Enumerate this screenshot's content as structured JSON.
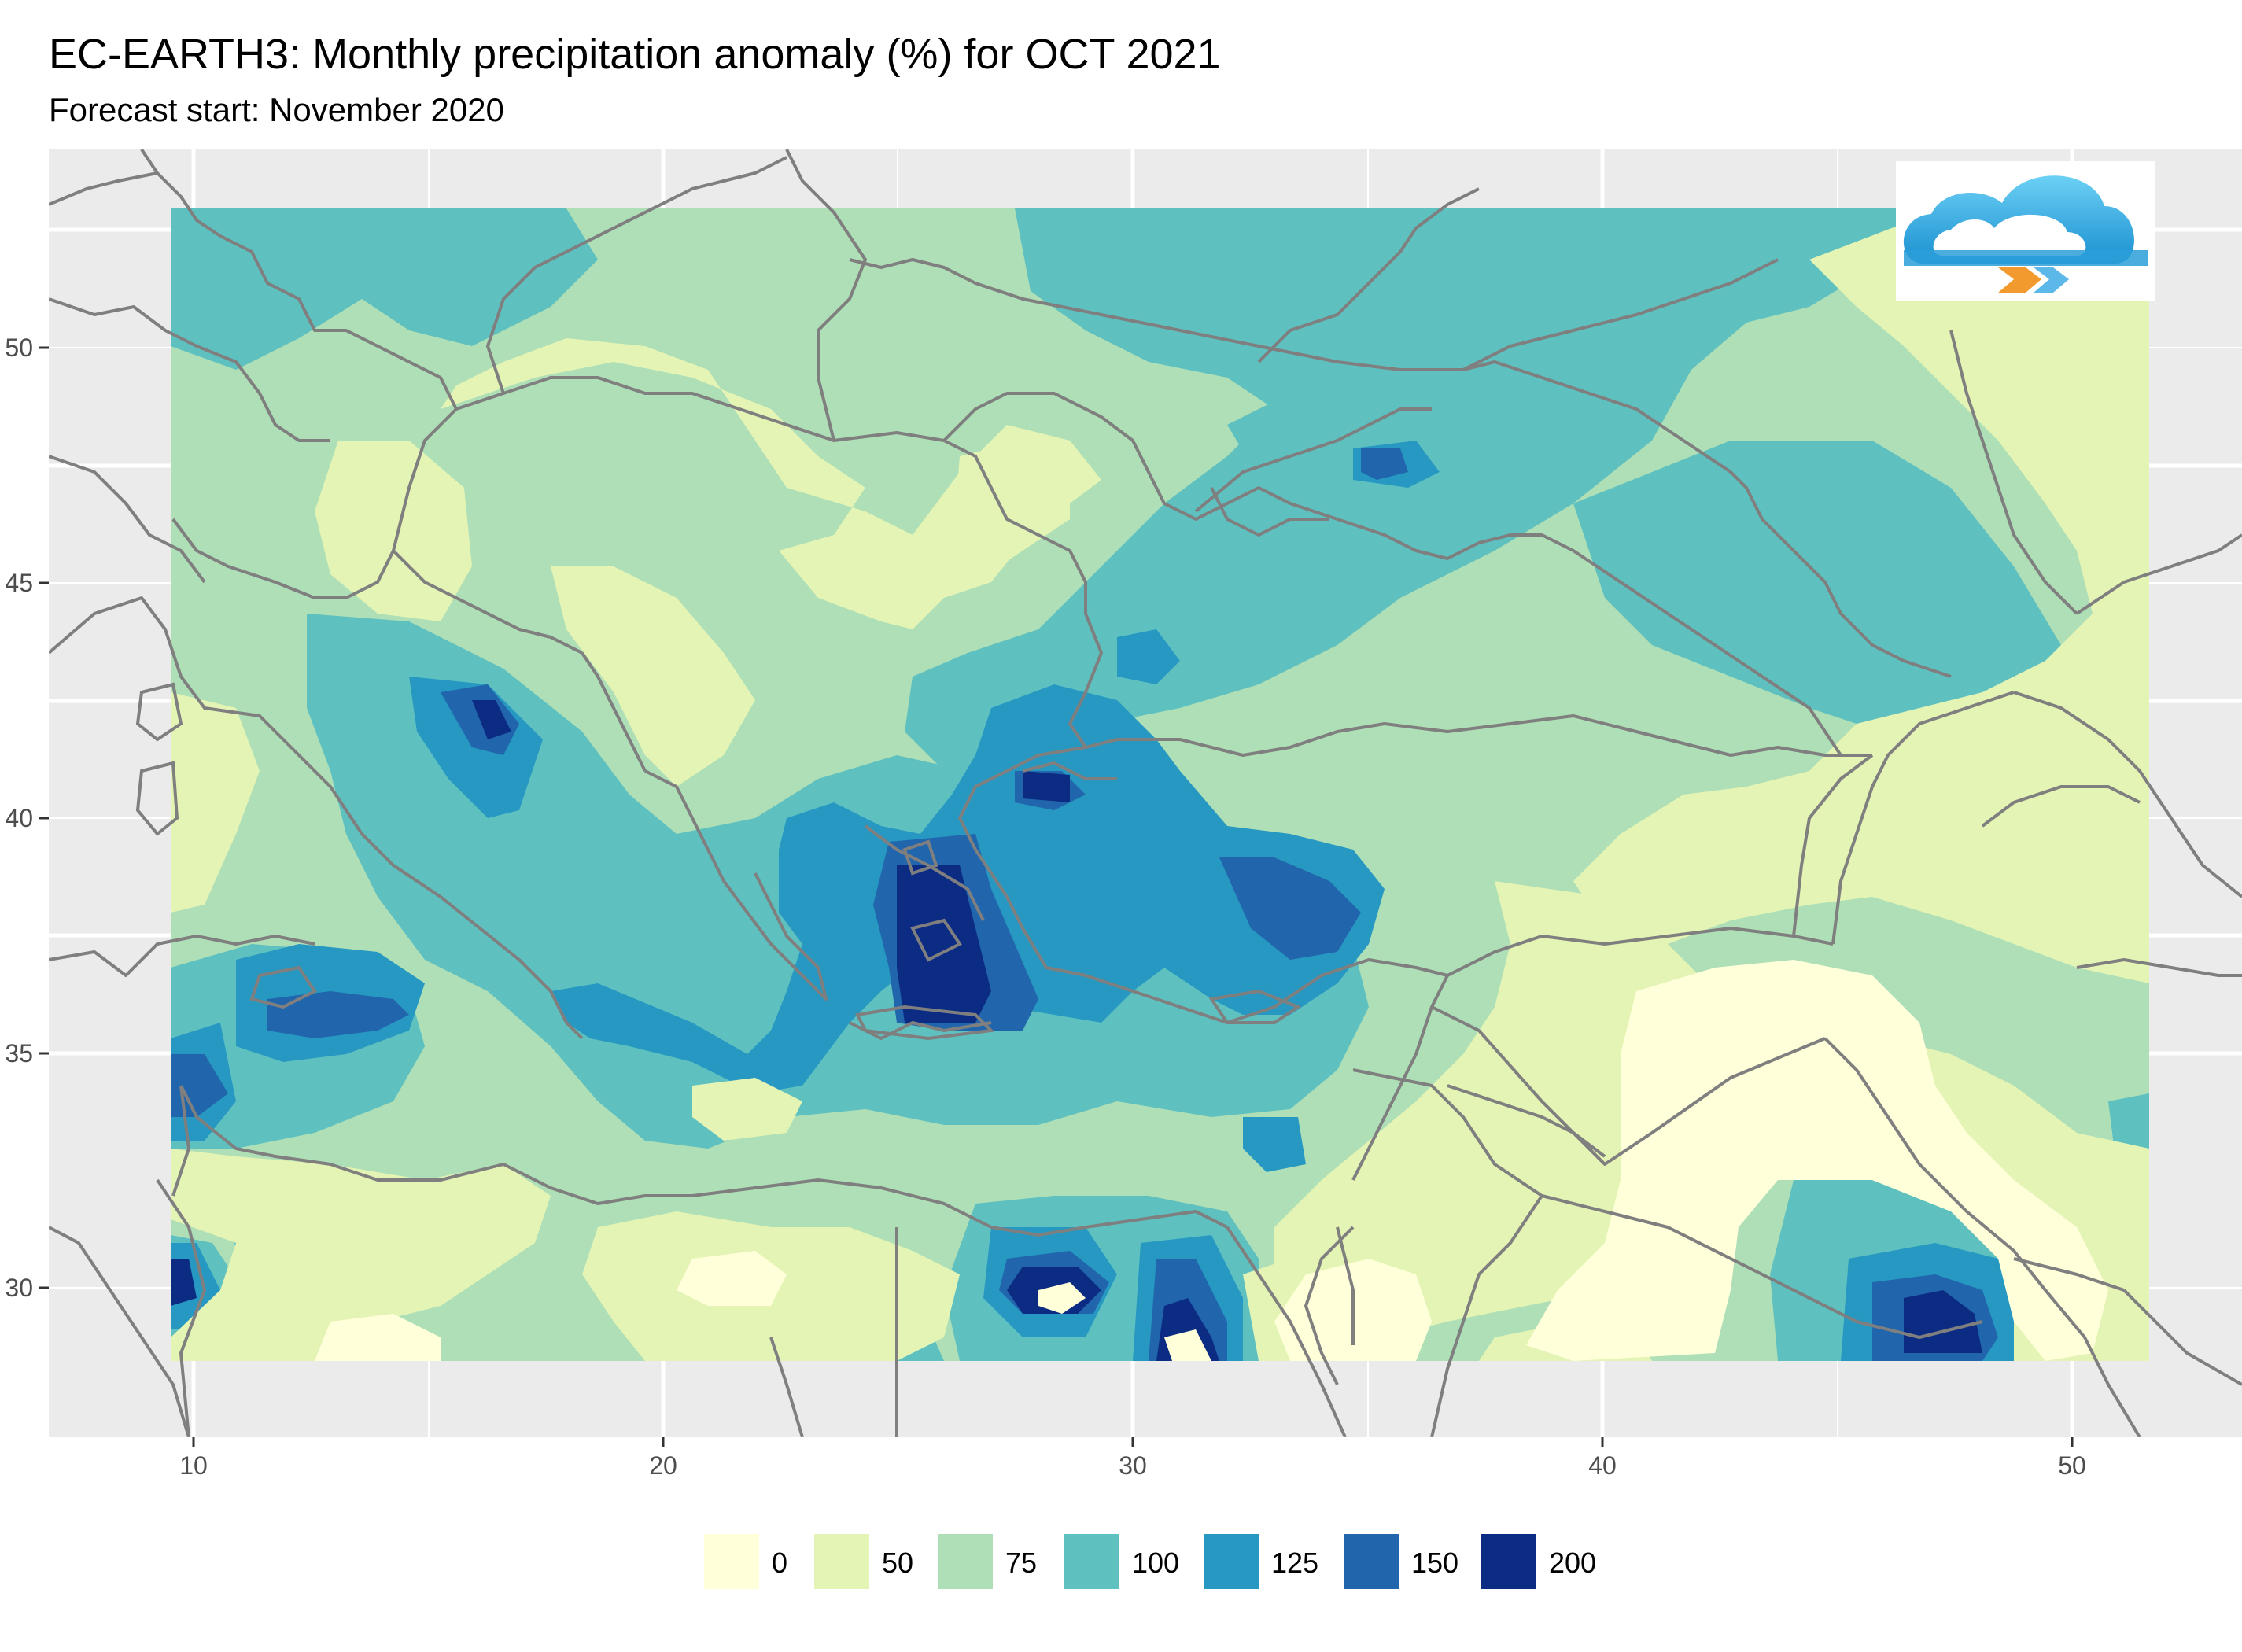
{
  "title": "EC-EARTH3: Monthly precipitation anomaly (%) for OCT 2021",
  "subtitle": "Forecast start: November 2020",
  "map": {
    "lon_range": [
      6.8,
      54.7
    ],
    "lat_range": [
      26.9,
      53.9
    ],
    "data_lon_range": [
      9.5,
      51.7
    ],
    "data_lat_range": [
      28.4,
      53.0
    ],
    "panel_background": "#ebebeb",
    "grid_color": "#ffffff",
    "border_color": "#7f7f7f",
    "x_ticks": [
      10,
      20,
      30,
      40,
      50
    ],
    "y_ticks": [
      30,
      35,
      40,
      45,
      50
    ],
    "x_tick_labels": [
      "10",
      "20",
      "30",
      "40",
      "50"
    ],
    "y_tick_labels": [
      "30",
      "35",
      "40",
      "45",
      "50"
    ]
  },
  "legend": {
    "items": [
      {
        "label": "0",
        "color": "#ffffd9"
      },
      {
        "label": "50",
        "color": "#e4f4b5"
      },
      {
        "label": "75",
        "color": "#afdfb6"
      },
      {
        "label": "100",
        "color": "#5fc0c0"
      },
      {
        "label": "125",
        "color": "#2698c1"
      },
      {
        "label": "150",
        "color": "#2166ac"
      },
      {
        "label": "200",
        "color": "#0c2c84"
      }
    ]
  },
  "logo": {
    "icon": "cloud-logo-icon"
  }
}
